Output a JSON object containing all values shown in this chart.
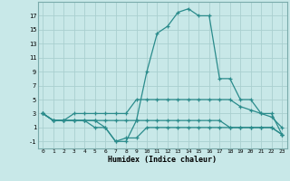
{
  "xlabel": "Humidex (Indice chaleur)",
  "line_main": [
    3,
    2,
    2,
    2,
    2,
    2,
    1,
    -1,
    -1,
    2,
    9,
    14.5,
    15.5,
    17.5,
    18,
    17,
    17,
    8,
    8,
    5,
    5,
    3,
    3,
    0
  ],
  "line_upper": [
    3,
    2,
    2,
    3,
    3,
    3,
    3,
    3,
    3,
    5,
    5,
    5,
    5,
    5,
    5,
    5,
    5,
    5,
    5,
    4,
    3.5,
    3,
    2.5,
    1
  ],
  "line_mid": [
    3,
    2,
    2,
    2,
    2,
    2,
    2,
    2,
    2,
    2,
    2,
    2,
    2,
    2,
    2,
    2,
    2,
    2,
    1,
    1,
    1,
    1,
    1,
    0
  ],
  "line_lower": [
    3,
    2,
    2,
    2,
    2,
    1,
    1,
    -1,
    -0.5,
    -0.5,
    1,
    1,
    1,
    1,
    1,
    1,
    1,
    1,
    1,
    1,
    1,
    1,
    1,
    0
  ],
  "line_color": "#2a8b8b",
  "bg_color": "#c8e8e8",
  "grid_color": "#aacfcf",
  "ylim": [
    -2,
    19
  ],
  "xlim": [
    -0.5,
    23.5
  ],
  "yticks": [
    -1,
    1,
    3,
    5,
    7,
    9,
    11,
    13,
    15,
    17
  ],
  "xticks": [
    0,
    1,
    2,
    3,
    4,
    5,
    6,
    7,
    8,
    9,
    10,
    11,
    12,
    13,
    14,
    15,
    16,
    17,
    18,
    19,
    20,
    21,
    22,
    23
  ]
}
